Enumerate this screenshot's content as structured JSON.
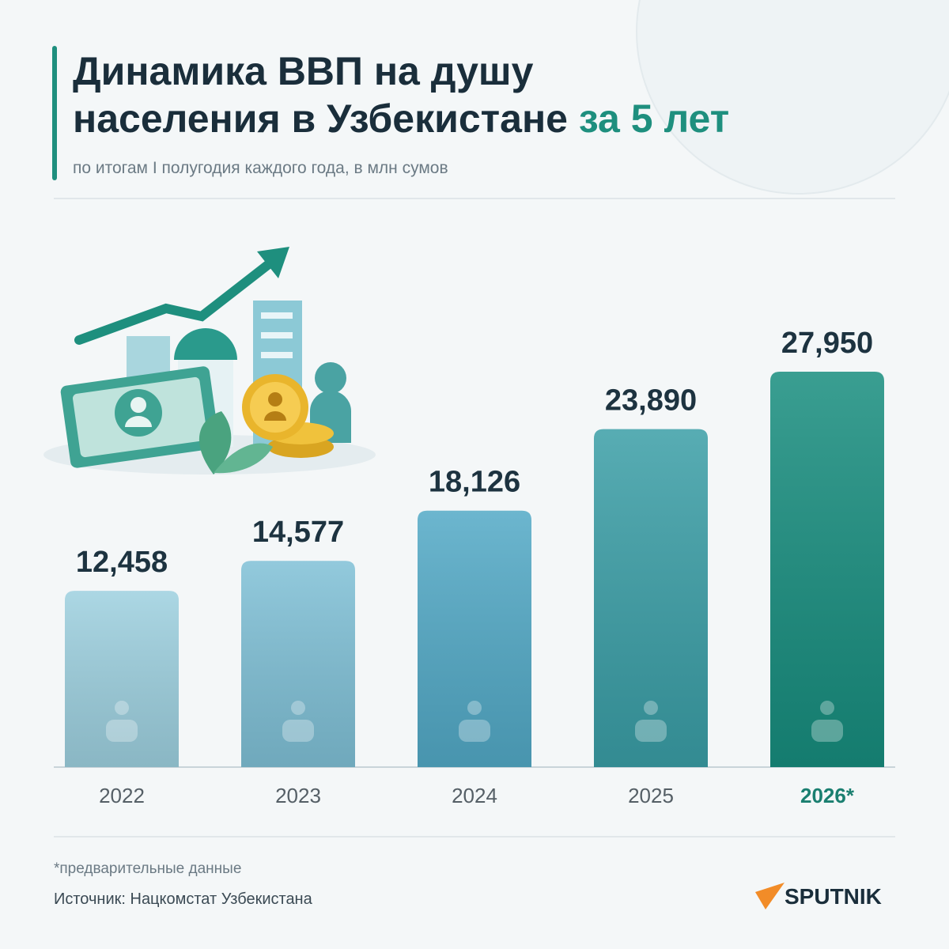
{
  "title_lines": [
    "Динамика ВВП на душу",
    "населения в Узбекистане"
  ],
  "title_highlight": "за 5 лет",
  "subtitle": "по итогам I полугодия каждого года, в млн сумов",
  "chart_data": {
    "type": "bar",
    "categories": [
      "2022",
      "2023",
      "2024",
      "2025",
      "2026*"
    ],
    "values": [
      12458,
      14577,
      18126,
      23890,
      27950
    ],
    "value_labels": [
      "12,458",
      "14,577",
      "18,126",
      "23,890",
      "27,950"
    ],
    "colors": [
      "#9dd0df",
      "#7fc0d6",
      "#52a9c6",
      "#3a9ea6",
      "#178d7e"
    ]
  },
  "footnote": "*предварительные данные",
  "source": "Источник: Нацкомстат Узбекистана",
  "brand": "SPUTNIK"
}
